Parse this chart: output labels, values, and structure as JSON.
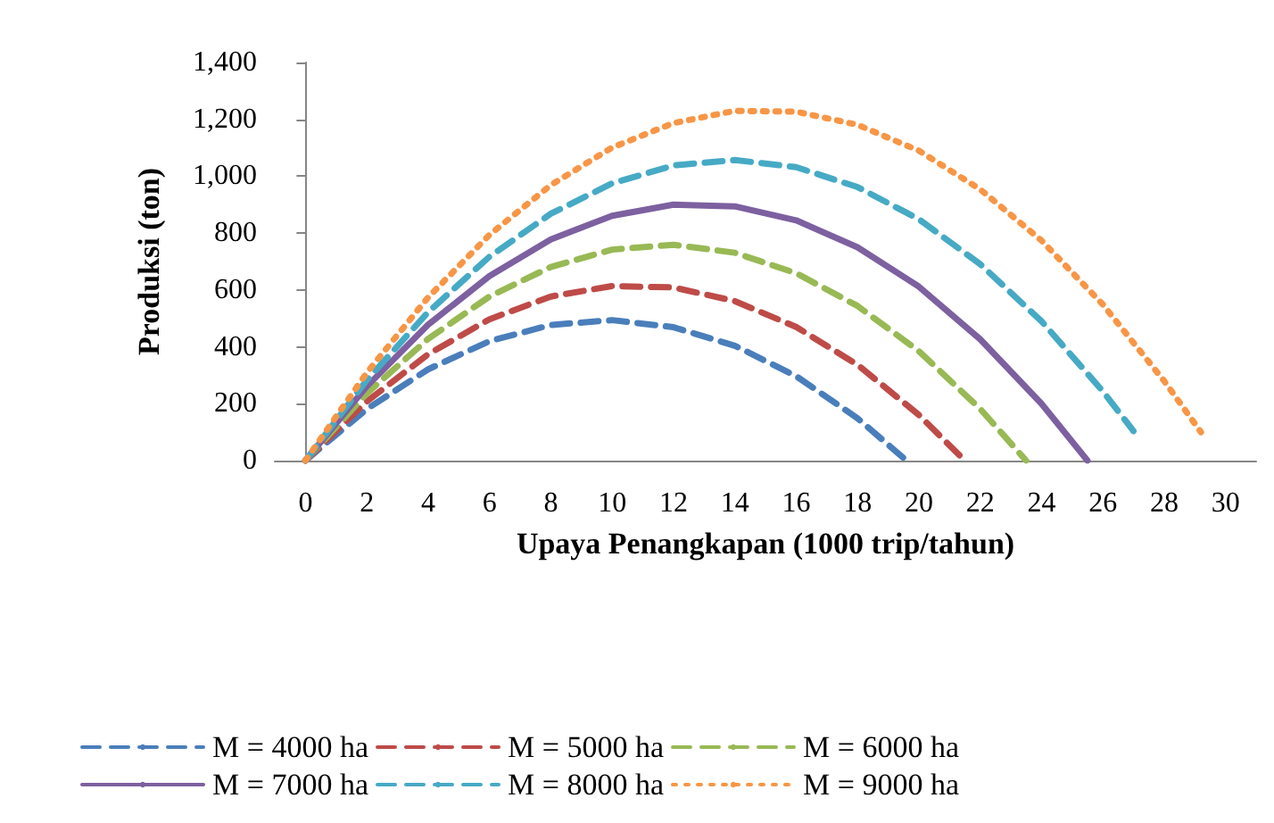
{
  "chart_data": {
    "type": "line",
    "xlabel": "Upaya Penangkapan (1000 trip/tahun)",
    "ylabel": "Produksi (ton)",
    "xlim": [
      -1,
      31
    ],
    "xticks": [
      0,
      2,
      4,
      6,
      8,
      10,
      12,
      14,
      16,
      18,
      20,
      22,
      24,
      26,
      28,
      30
    ],
    "ylim": [
      0,
      1400
    ],
    "yticks": [
      0,
      200,
      400,
      600,
      800,
      {
        "value": 1000,
        "label": "1,000"
      },
      {
        "value": 1200,
        "label": "1,200"
      },
      {
        "value": 1400,
        "label": "1,400"
      }
    ],
    "grid": false,
    "legend": "bottom",
    "marker": "none",
    "series": [
      {
        "name": "M = 4000 ha",
        "color": "#4a7ebb",
        "line_style": "dashed",
        "x": [
          0,
          2,
          4,
          6,
          8,
          10,
          12,
          14,
          16,
          18,
          19.6
        ],
        "values": [
          0,
          181,
          321,
          420,
          477,
          494,
          469,
          404,
          297,
          149,
          0
        ]
      },
      {
        "name": "M = 5000 ha",
        "color": "#be4b48",
        "line_style": "dashed",
        "x": [
          0,
          2,
          4,
          6,
          8,
          10,
          12,
          14,
          16,
          18,
          20,
          21.5
        ],
        "values": [
          0,
          208,
          374,
          497,
          577,
          614,
          609,
          561,
          470,
          337,
          161,
          0
        ]
      },
      {
        "name": "M = 6000 ha",
        "color": "#98b954",
        "line_style": "dashed",
        "x": [
          0,
          2,
          4,
          6,
          8,
          10,
          12,
          14,
          16,
          18,
          20,
          22,
          23.5
        ],
        "values": [
          0,
          236,
          428,
          577,
          681,
          742,
          759,
          731,
          659,
          544,
          385,
          182,
          0
        ]
      },
      {
        "name": "M = 7000 ha",
        "color": "#7d60a0",
        "line_style": "solid",
        "x": [
          0,
          2,
          4,
          6,
          8,
          10,
          12,
          14,
          16,
          18,
          20,
          22,
          24,
          25.5
        ],
        "values": [
          0,
          261,
          478,
          649,
          778,
          861,
          900,
          894,
          845,
          750,
          612,
          427,
          200,
          0
        ]
      },
      {
        "name": "M = 8000 ha",
        "color": "#46aac5",
        "line_style": "dashed",
        "x": [
          0,
          2,
          4,
          6,
          8,
          10,
          12,
          14,
          16,
          18,
          20,
          22,
          24,
          26,
          27
        ],
        "values": [
          0,
          283,
          522,
          717,
          868,
          975,
          1038,
          1057,
          1032,
          962,
          849,
          691,
          490,
          244,
          104
        ]
      },
      {
        "name": "M = 9000 ha",
        "color": "#f79646",
        "line_style": "dotted",
        "x": [
          0,
          2,
          4,
          6,
          8,
          10,
          12,
          14,
          16,
          18,
          20,
          22,
          24,
          26,
          28,
          29.2
        ],
        "values": [
          0,
          309,
          574,
          794,
          969,
          1101,
          1187,
          1230,
          1227,
          1181,
          1090,
          954,
          774,
          549,
          280,
          100
        ]
      }
    ]
  }
}
